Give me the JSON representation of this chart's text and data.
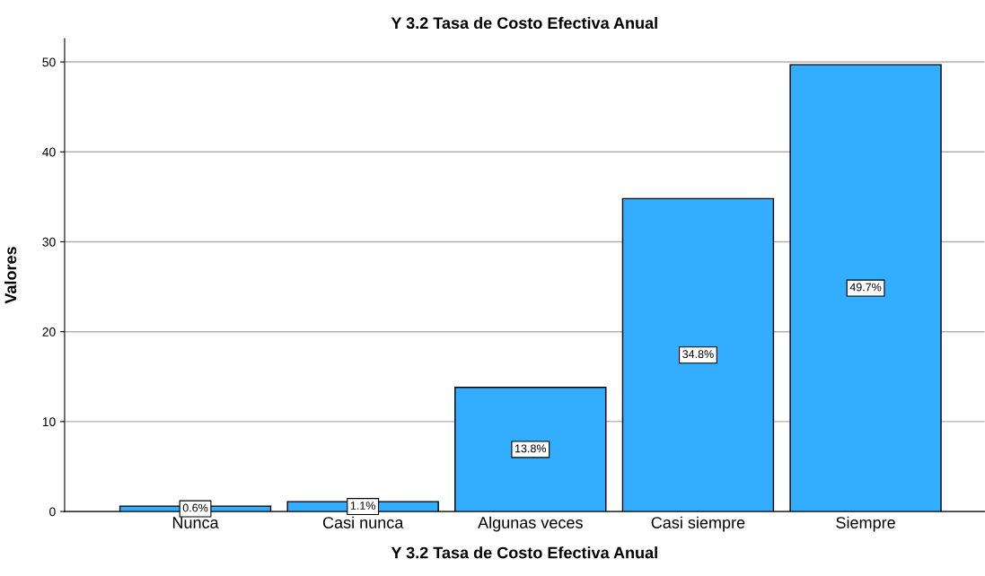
{
  "chart_data": {
    "type": "bar",
    "title": "Y 3.2 Tasa de Costo Efectiva Anual",
    "xlabel": "Y 3.2 Tasa de Costo Efectiva Anual",
    "ylabel": "Valores",
    "categories": [
      "Nunca",
      "Casi nunca",
      "Algunas veces",
      "Casi siempre",
      "Siempre"
    ],
    "values": [
      0.6,
      1.1,
      13.8,
      34.8,
      49.7
    ],
    "value_labels": [
      "0.6%",
      "1.1%",
      "13.8%",
      "34.8%",
      "49.7%"
    ],
    "color": "#33adff",
    "ylim": [
      0,
      52.6
    ],
    "yticks": [
      0,
      10,
      20,
      30,
      40,
      50
    ],
    "grid": "y",
    "legend": false
  }
}
